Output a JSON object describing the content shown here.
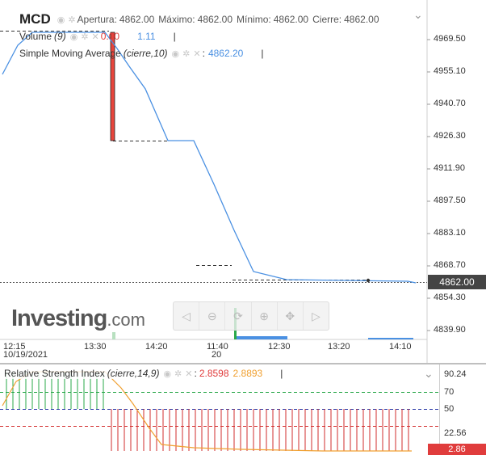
{
  "header": {
    "symbol": "MCD",
    "open_label": "Apertura:",
    "open_value": "4862.00",
    "high_label": "Máximo:",
    "high_value": "4862.00",
    "low_label": "Mínimo:",
    "low_value": "4862.00",
    "close_label": "Cierre:",
    "close_value": "4862.00"
  },
  "volume_legend": {
    "label": "Volume",
    "param": "(9)",
    "value1": "0.00",
    "value2": "1.11",
    "sep": "|"
  },
  "sma_legend": {
    "label": "Simple Moving Average",
    "param": "(cierre,10)",
    "sep": ":",
    "value": "4862.20",
    "sep2": "|"
  },
  "rsi_legend": {
    "label": "Relative Strength Index",
    "param": "(cierre,14,9)",
    "value1": "2.8598",
    "value2": "2.8893",
    "sep": "|"
  },
  "price_axis": {
    "ticks": [
      "4969.50",
      "4955.10",
      "4940.70",
      "4926.30",
      "4911.90",
      "4897.50",
      "4883.10",
      "4868.70",
      "4854.30",
      "4839.90"
    ],
    "current": "4862.00"
  },
  "time_axis": {
    "ticks": [
      {
        "label": "12:15",
        "sub": "10/19/2021"
      },
      {
        "label": "13:30",
        "sub": ""
      },
      {
        "label": "14:20",
        "sub": ""
      },
      {
        "label": "11:40",
        "sub": "20"
      },
      {
        "label": "12:30",
        "sub": ""
      },
      {
        "label": "13:20",
        "sub": ""
      },
      {
        "label": "14:10",
        "sub": ""
      }
    ]
  },
  "rsi_axis": {
    "ticks": [
      "90.24",
      "70",
      "50",
      "22.56"
    ],
    "current": "2.86"
  },
  "logo": {
    "brand": "Investing",
    "suffix": ".com"
  },
  "toolbar": {
    "icons": [
      "arrow-left-icon",
      "zoom-out-icon",
      "reset-zoom-icon",
      "zoom-in-icon",
      "pan-icon",
      "arrow-right-icon"
    ]
  },
  "colors": {
    "sma_line": "#4a90e2",
    "candle_red": "#e8453c",
    "rsi_line": "#f0a030",
    "rsi_green": "#2aa84a",
    "rsi_red": "#d22d2d",
    "axis_text": "#333333"
  }
}
